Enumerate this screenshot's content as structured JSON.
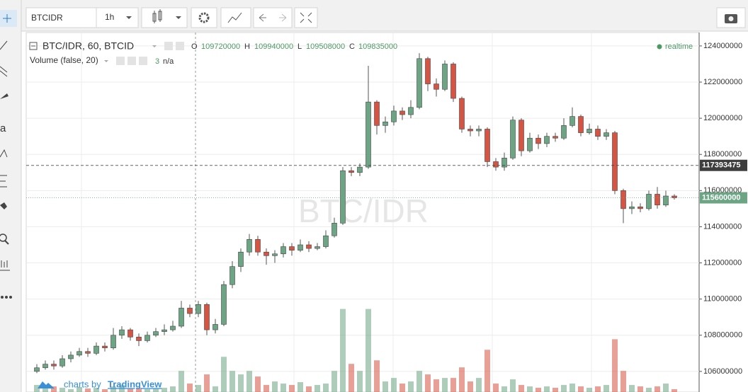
{
  "toolbar": {
    "symbol": "BTCIDR",
    "interval": "1h"
  },
  "left_toolbar": {
    "text_tool": "a"
  },
  "chart_data": {
    "type": "candlestick",
    "title": "BTC/IDR, 60, BTCID",
    "watermark": "BTC/IDR",
    "legend": {
      "o_label": "O",
      "o": 109720000,
      "h_label": "H",
      "h": 109940000,
      "l_label": "L",
      "l": 109508000,
      "c_label": "C",
      "c": 109835000
    },
    "volume_title": "Volume (false, 20)",
    "volume_legend": [
      "3",
      "n/a"
    ],
    "status": "realtime",
    "ylim": [
      104860000,
      124740000
    ],
    "yticks": [
      106000000,
      108000000,
      110000000,
      112000000,
      114000000,
      116000000,
      118000000,
      120000000,
      122000000,
      124000000
    ],
    "grid": true,
    "up_color": "#6ba583",
    "down_color": "#d75442",
    "volume_lim": [
      0,
      120
    ],
    "open": [
      106000000,
      106200000,
      106400000,
      106300000,
      106700000,
      106900000,
      107100000,
      107000000,
      107400000,
      107300000,
      108000000,
      108300000,
      107900000,
      107700000,
      108000000,
      108200000,
      108300000,
      108500000,
      109500000,
      109200000,
      109700000,
      108300000,
      108600000,
      110800000,
      111800000,
      112600000,
      113300000,
      112600000,
      112400000,
      112500000,
      112900000,
      112700000,
      113000000,
      112800000,
      112900000,
      113500000,
      114200000,
      117100000,
      117000000,
      117300000,
      120900000,
      119600000,
      119800000,
      120400000,
      120200000,
      120600000,
      123300000,
      121900000,
      121600000,
      123000000,
      121100000,
      119400000,
      119300000,
      119400000,
      117600000,
      117300000,
      117800000,
      119900000,
      118200000,
      118900000,
      118600000,
      119000000,
      118900000,
      119600000,
      120100000,
      119200000,
      119400000,
      119000000,
      119200000,
      116000000,
      115000000,
      115100000,
      115000000,
      115800000,
      115200000,
      115700000
    ],
    "high": [
      106400000,
      106600000,
      106600000,
      106900000,
      107100000,
      107300000,
      107300000,
      107600000,
      107600000,
      108400000,
      108500000,
      108400000,
      108100000,
      108200000,
      108400000,
      108600000,
      108800000,
      109900000,
      109700000,
      109900000,
      109800000,
      108900000,
      111000000,
      112100000,
      112800000,
      113600000,
      113500000,
      112800000,
      112700000,
      113100000,
      113100000,
      113300000,
      113200000,
      113100000,
      113800000,
      114500000,
      117300000,
      117300000,
      117500000,
      122900000,
      121000000,
      120100000,
      120700000,
      120600000,
      121000000,
      123600000,
      123400000,
      122200000,
      123200000,
      123100000,
      121200000,
      119600000,
      119600000,
      119500000,
      117800000,
      118100000,
      120100000,
      120000000,
      119200000,
      119100000,
      119200000,
      119200000,
      120000000,
      120600000,
      120200000,
      119700000,
      119600000,
      119400000,
      119300000,
      116100000,
      115400000,
      115300000,
      116000000,
      116200000,
      116000000,
      115800000
    ],
    "low": [
      105900000,
      106100000,
      106100000,
      106200000,
      106500000,
      106800000,
      106800000,
      106900000,
      107100000,
      107200000,
      107800000,
      107700000,
      107400000,
      107600000,
      107900000,
      108000000,
      108200000,
      108400000,
      109000000,
      109000000,
      108000000,
      108100000,
      108500000,
      110600000,
      111500000,
      112400000,
      112400000,
      111900000,
      112000000,
      112300000,
      112400000,
      112600000,
      112600000,
      112700000,
      112800000,
      113400000,
      114100000,
      116800000,
      116800000,
      117200000,
      119100000,
      119200000,
      119600000,
      119900000,
      120000000,
      120500000,
      121500000,
      121200000,
      121500000,
      120900000,
      119200000,
      119000000,
      119000000,
      117300000,
      117100000,
      117100000,
      117700000,
      117900000,
      118100000,
      118300000,
      118400000,
      118700000,
      118800000,
      119500000,
      119000000,
      119100000,
      118800000,
      118800000,
      115800000,
      114200000,
      114700000,
      114800000,
      114900000,
      115000000,
      115100000,
      115500000
    ],
    "close": [
      106200000,
      106400000,
      106300000,
      106700000,
      106900000,
      107100000,
      107000000,
      107400000,
      107300000,
      108000000,
      108300000,
      107900000,
      107700000,
      108000000,
      108200000,
      108300000,
      108500000,
      109500000,
      109200000,
      109700000,
      108300000,
      108600000,
      110800000,
      111800000,
      112600000,
      113300000,
      112600000,
      112400000,
      112500000,
      112900000,
      112700000,
      113000000,
      112800000,
      112900000,
      113500000,
      114200000,
      117100000,
      117000000,
      117300000,
      120900000,
      119600000,
      119800000,
      120400000,
      120200000,
      120600000,
      123300000,
      121900000,
      121600000,
      123000000,
      121100000,
      119400000,
      119300000,
      119400000,
      117600000,
      117300000,
      117800000,
      119900000,
      118200000,
      118900000,
      118600000,
      119000000,
      118900000,
      119600000,
      120100000,
      119200000,
      119400000,
      119000000,
      119200000,
      116000000,
      115000000,
      115100000,
      115000000,
      115800000,
      115200000,
      115700000,
      115600000
    ],
    "volume": [
      10,
      5,
      8,
      6,
      4,
      7,
      5,
      6,
      4,
      8,
      10,
      5,
      6,
      4,
      5,
      6,
      8,
      30,
      12,
      10,
      25,
      8,
      50,
      30,
      25,
      30,
      22,
      10,
      15,
      12,
      10,
      14,
      8,
      10,
      12,
      30,
      118,
      40,
      30,
      118,
      45,
      15,
      20,
      12,
      15,
      30,
      25,
      18,
      20,
      20,
      35,
      15,
      20,
      60,
      12,
      8,
      18,
      10,
      8,
      6,
      8,
      6,
      10,
      12,
      8,
      6,
      8,
      10,
      75,
      30,
      10,
      8,
      6,
      8,
      12,
      4
    ],
    "price_lines": [
      {
        "value": 117393475,
        "color": "#3d3d3d"
      },
      {
        "value": 115600000,
        "color": "#6ba583"
      }
    ]
  },
  "footer": {
    "prefix": "charts by",
    "brand": "TradingView"
  }
}
